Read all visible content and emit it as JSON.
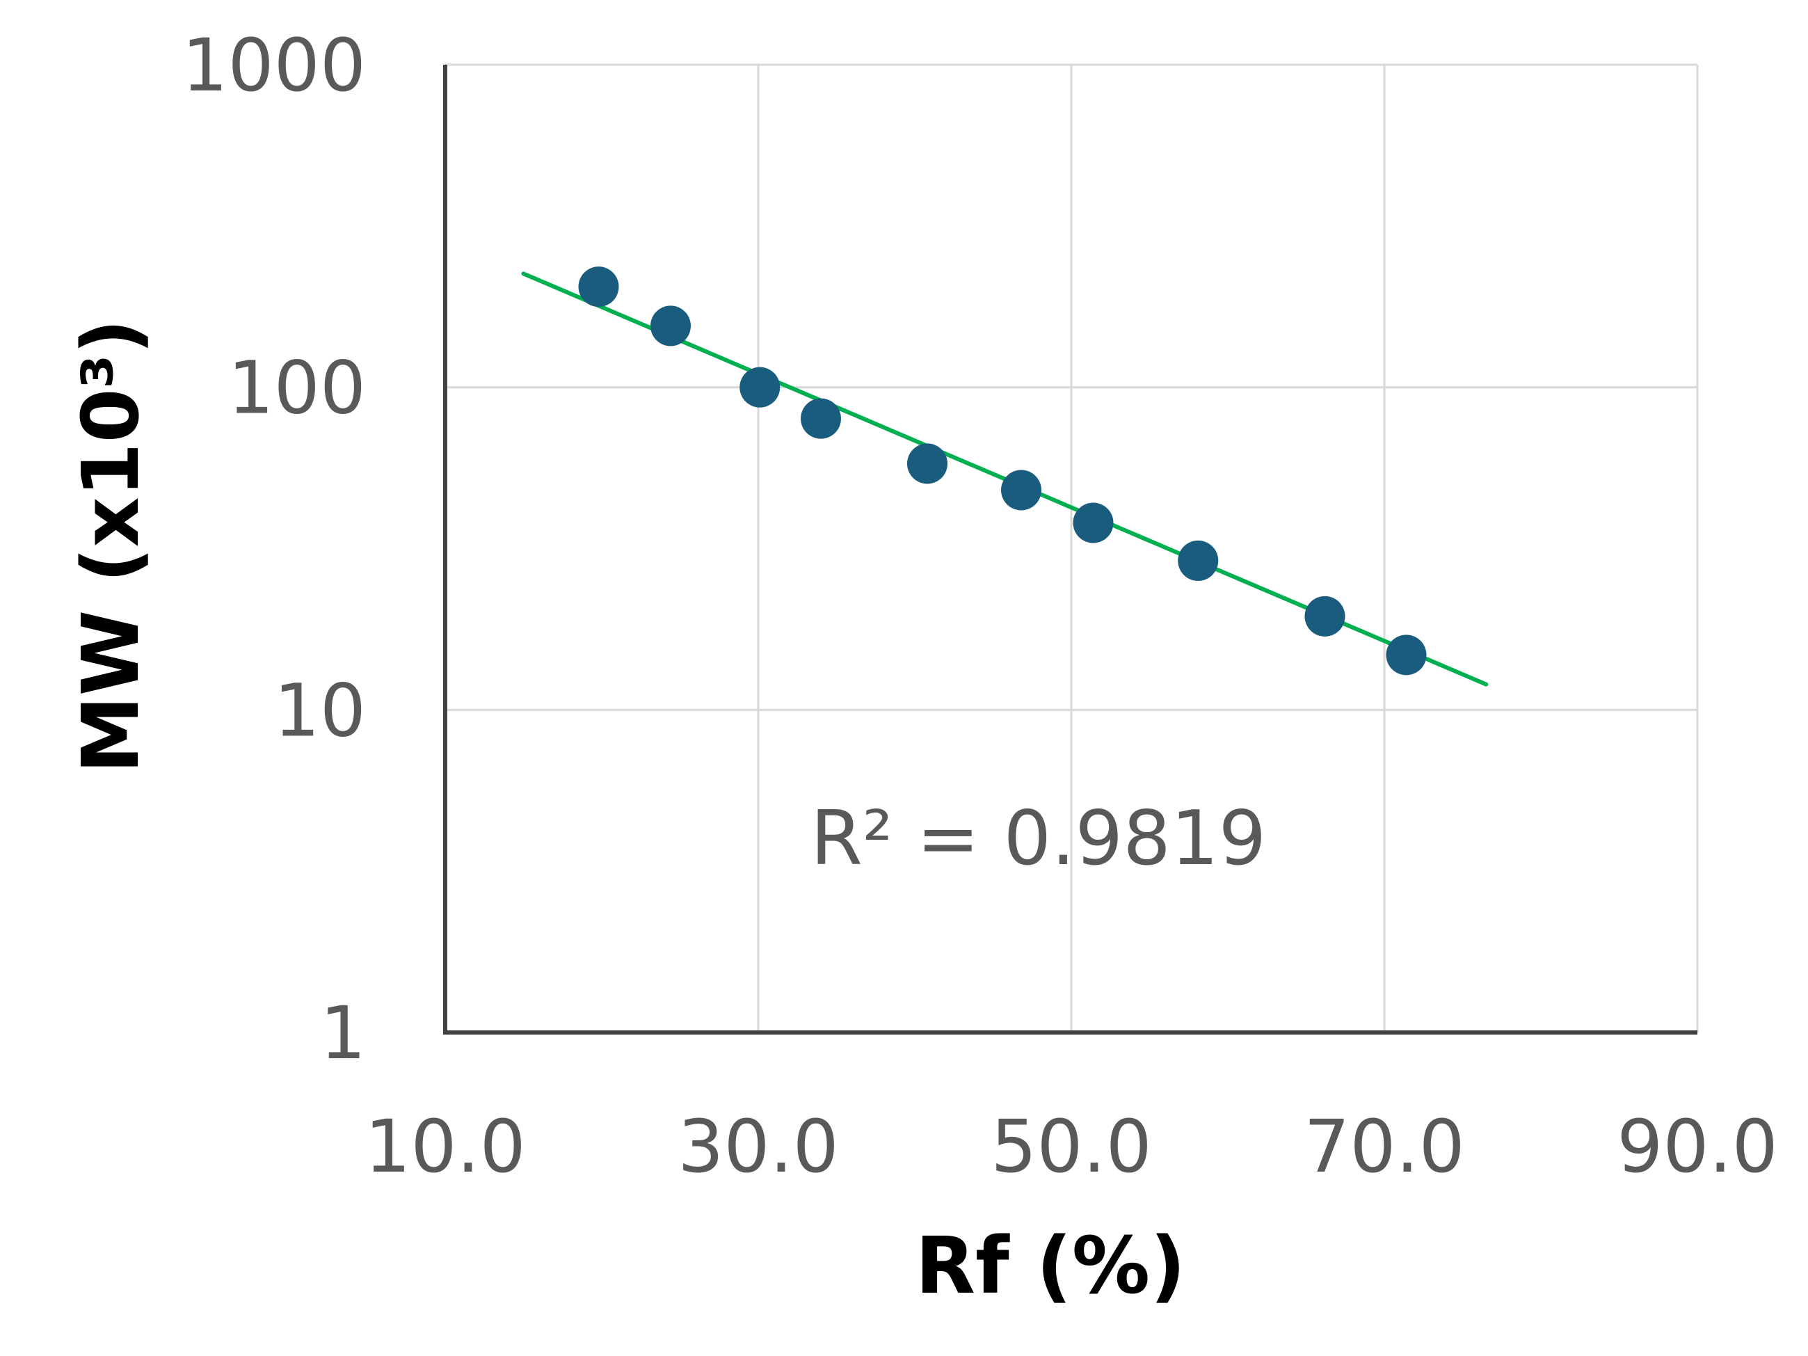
{
  "chart_data": {
    "type": "scatter",
    "xlabel": "Rf  (%)",
    "ylabel": "MW (x10³)",
    "xlim": [
      10,
      90
    ],
    "ylim": [
      1,
      1000
    ],
    "yscale": "log",
    "x_ticks": [
      "10.0",
      "30.0",
      "50.0",
      "70.0",
      "90.0"
    ],
    "y_ticks": [
      "1",
      "10",
      "100",
      "1000"
    ],
    "grid": true,
    "series": [
      {
        "x": [
          19.8,
          24.4,
          30.1,
          34.0,
          40.8,
          46.8,
          51.4,
          58.1,
          66.2,
          71.4
        ],
        "y": [
          205,
          155,
          100,
          80,
          58,
          48,
          38,
          29,
          19.5,
          14.8
        ]
      }
    ],
    "trendline": {
      "x": [
        15.0,
        76.5
      ],
      "y": [
        225,
        12
      ]
    },
    "annotation": "R² = 0.9819",
    "colors": {
      "points": "#1a5c7e",
      "trendline": "#00b050",
      "grid": "#d9d9d9",
      "axis": "#404040"
    }
  }
}
